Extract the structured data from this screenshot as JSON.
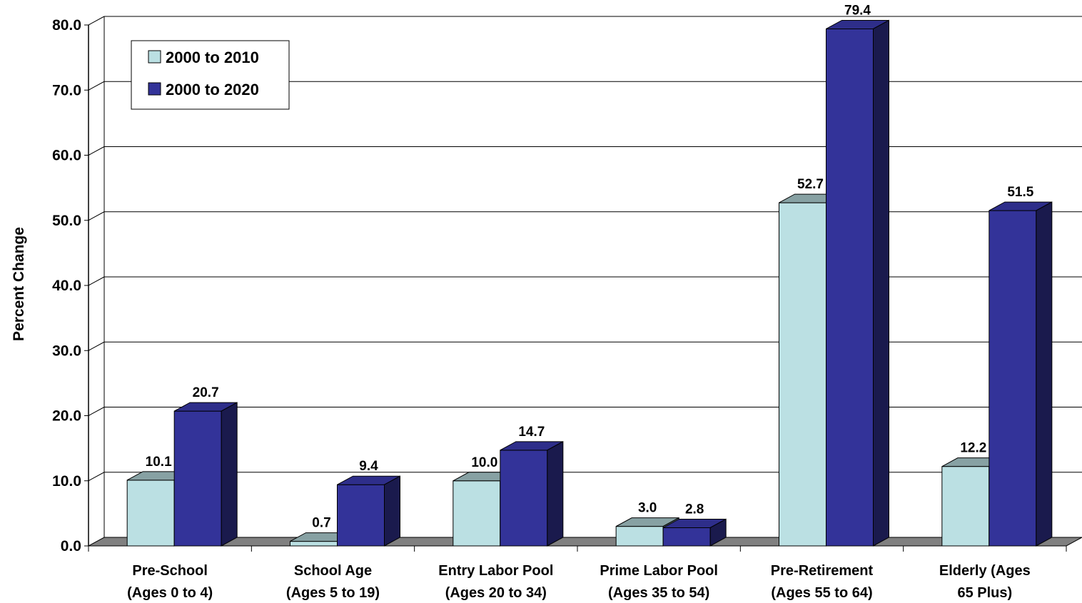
{
  "chart_data": {
    "type": "bar",
    "title": "",
    "xlabel": "",
    "ylabel": "Percent Change",
    "ylim": [
      0,
      80
    ],
    "ytick_step": 10,
    "ytick_labels": [
      "0.0",
      "10.0",
      "20.0",
      "30.0",
      "40.0",
      "50.0",
      "60.0",
      "70.0",
      "80.0"
    ],
    "categories": [
      [
        "Pre-School",
        "(Ages 0 to 4)"
      ],
      [
        "School Age",
        "(Ages 5 to 19)"
      ],
      [
        "Entry Labor Pool",
        "(Ages 20 to 34)"
      ],
      [
        "Prime Labor Pool",
        "(Ages 35 to 54)"
      ],
      [
        "Pre-Retirement",
        "(Ages 55 to 64)"
      ],
      [
        "Elderly (Ages",
        "65 Plus)"
      ]
    ],
    "series": [
      {
        "name": "2000 to 2010",
        "color": "#BBE0E3",
        "values": [
          10.1,
          0.7,
          10.0,
          3.0,
          52.7,
          12.2
        ],
        "labels": [
          "10.1",
          "0.7",
          "10.0",
          "3.0",
          "52.7",
          "12.2"
        ]
      },
      {
        "name": "2000 to 2020",
        "color": "#333399",
        "values": [
          20.7,
          9.4,
          14.7,
          2.8,
          79.4,
          51.5
        ],
        "labels": [
          "20.7",
          "9.4",
          "14.7",
          "2.8",
          "79.4",
          "51.5"
        ]
      }
    ],
    "grid": true,
    "legend": "top-left",
    "style": "3d-clustered-column"
  }
}
